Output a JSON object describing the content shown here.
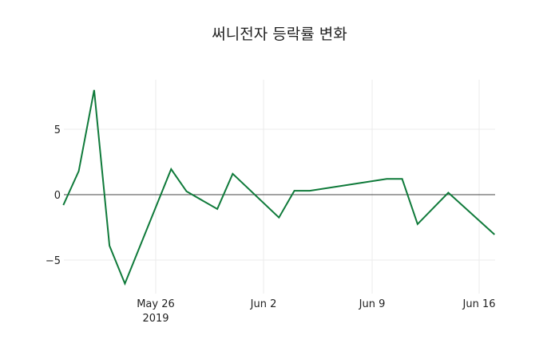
{
  "chart_data": {
    "type": "line",
    "title": "써니전자 등락률 변화",
    "xlabel": "",
    "ylabel": "",
    "x": [
      "2019-05-20",
      "2019-05-21",
      "2019-05-22",
      "2019-05-23",
      "2019-05-24",
      "2019-05-27",
      "2019-05-28",
      "2019-05-30",
      "2019-05-31",
      "2019-06-03",
      "2019-06-04",
      "2019-06-05",
      "2019-06-10",
      "2019-06-11",
      "2019-06-12",
      "2019-06-14",
      "2019-06-17"
    ],
    "series": [
      {
        "name": "등락률",
        "color": "#0f7a3a",
        "values": [
          -0.8,
          1.8,
          8.0,
          -3.9,
          -6.8,
          1.95,
          0.25,
          -1.1,
          1.6,
          -1.75,
          0.3,
          0.3,
          1.2,
          1.2,
          -2.25,
          0.15,
          -3.05
        ]
      }
    ],
    "x_ticks": [
      {
        "label": "May 26",
        "sub": "2019"
      },
      {
        "label": "Jun 2"
      },
      {
        "label": "Jun 9"
      },
      {
        "label": "Jun 16"
      }
    ],
    "y_ticks": [
      "5",
      "0",
      "−5"
    ],
    "ylim": [
      -7.4,
      8.8
    ],
    "grid": true,
    "zeroline": true
  }
}
